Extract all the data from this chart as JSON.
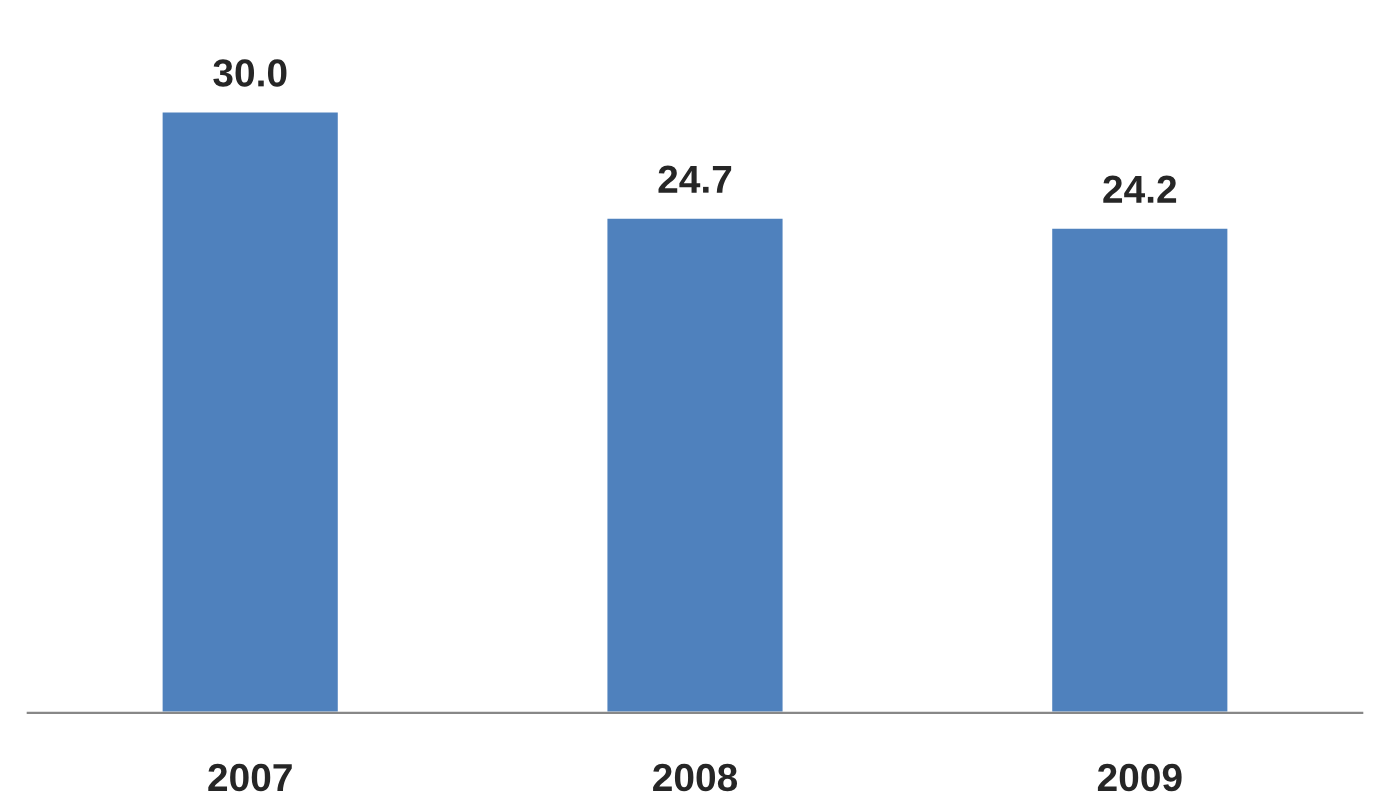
{
  "chart_data": {
    "type": "bar",
    "categories": [
      "2007",
      "2008",
      "2009"
    ],
    "values": [
      30.0,
      24.7,
      24.2
    ],
    "value_labels": [
      "30.0",
      "24.7",
      "24.2"
    ],
    "color": "#4f81bd",
    "tick_labels": "x",
    "grid": false,
    "legend": false
  }
}
